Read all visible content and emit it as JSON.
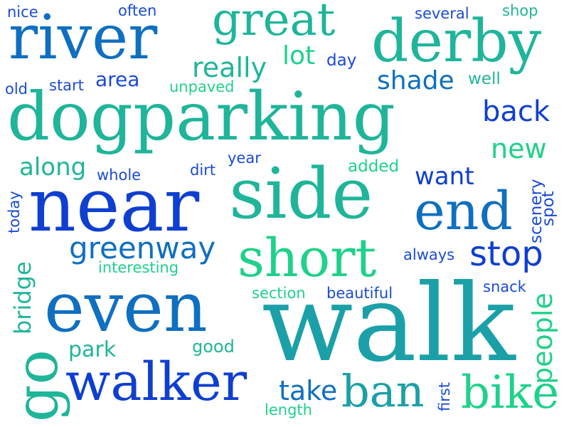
{
  "words": [
    {
      "text": "nice",
      "color": "#1a4bd6"
    },
    {
      "text": "often",
      "color": "#1a4bd6"
    },
    {
      "text": "great",
      "color": "#1fb59a"
    },
    {
      "text": "several",
      "color": "#1a4bd6"
    },
    {
      "text": "shop",
      "color": "#1fb59a"
    },
    {
      "text": "river",
      "color": "#0f6fc0"
    },
    {
      "text": "derby",
      "color": "#1fb59a"
    },
    {
      "text": "lot",
      "color": "#1fd18a"
    },
    {
      "text": "day",
      "color": "#1a4bd6"
    },
    {
      "text": "really",
      "color": "#1fb59a"
    },
    {
      "text": "area",
      "color": "#1a4bd6"
    },
    {
      "text": "old",
      "color": "#1a4bd6"
    },
    {
      "text": "start",
      "color": "#1a4bd6"
    },
    {
      "text": "unpaved",
      "color": "#1fd18a"
    },
    {
      "text": "shade",
      "color": "#0f6fc0"
    },
    {
      "text": "well",
      "color": "#1fb59a"
    },
    {
      "text": "dogparking",
      "color": "#1fb59a"
    },
    {
      "text": "back",
      "color": "#0f3fd0"
    },
    {
      "text": "new",
      "color": "#1fd18a"
    },
    {
      "text": "along",
      "color": "#1fb59a"
    },
    {
      "text": "whole",
      "color": "#1a4bd6"
    },
    {
      "text": "dirt",
      "color": "#1a4bd6"
    },
    {
      "text": "year",
      "color": "#1a4bd6"
    },
    {
      "text": "added",
      "color": "#1fd18a"
    },
    {
      "text": "want",
      "color": "#0f3fd0"
    },
    {
      "text": "today",
      "color": "#1a4bd6"
    },
    {
      "text": "near",
      "color": "#0f3fd0"
    },
    {
      "text": "side",
      "color": "#1fb59a"
    },
    {
      "text": "end",
      "color": "#0f6fc0"
    },
    {
      "text": "scenery",
      "color": "#1a4bd6"
    },
    {
      "text": "spot",
      "color": "#1a4bd6"
    },
    {
      "text": "greenway",
      "color": "#0f6fc0"
    },
    {
      "text": "short",
      "color": "#1fd18a"
    },
    {
      "text": "always",
      "color": "#1a4bd6"
    },
    {
      "text": "stop",
      "color": "#0f3fd0"
    },
    {
      "text": "interesting",
      "color": "#1fd18a"
    },
    {
      "text": "bridge",
      "color": "#1fb59a"
    },
    {
      "text": "even",
      "color": "#0f6fc0"
    },
    {
      "text": "section",
      "color": "#1fd18a"
    },
    {
      "text": "beautiful",
      "color": "#1a4bd6"
    },
    {
      "text": "snack",
      "color": "#1a4bd6"
    },
    {
      "text": "walk",
      "color": "#1ba0a8"
    },
    {
      "text": "people",
      "color": "#1fd18a"
    },
    {
      "text": "park",
      "color": "#1fb59a"
    },
    {
      "text": "good",
      "color": "#1fb59a"
    },
    {
      "text": "go",
      "color": "#1fb59a"
    },
    {
      "text": "walker",
      "color": "#0f3fd0"
    },
    {
      "text": "take",
      "color": "#0f6fc0"
    },
    {
      "text": "ban",
      "color": "#1ba0a8"
    },
    {
      "text": "first",
      "color": "#1a4bd6"
    },
    {
      "text": "bike",
      "color": "#1fd18a"
    },
    {
      "text": "length",
      "color": "#1fd18a"
    }
  ]
}
